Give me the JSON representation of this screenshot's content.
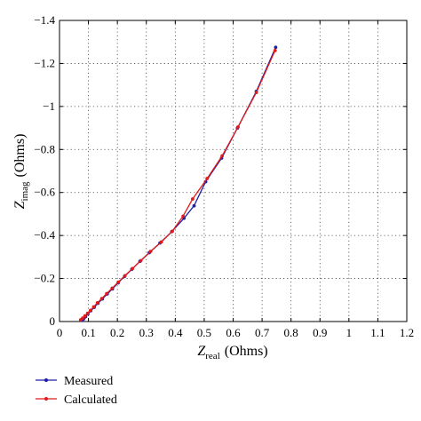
{
  "chart_data": {
    "type": "line",
    "xlabel": {
      "main": "Z",
      "sub": "real",
      "unit": "(Ohms)"
    },
    "ylabel": {
      "main": "Z",
      "sub": "imag",
      "unit": "(Ohms)"
    },
    "xlim": [
      0,
      1.2
    ],
    "ylim": [
      0,
      -1.4
    ],
    "x_ticks": [
      0,
      0.1,
      0.2,
      0.3,
      0.4,
      0.5,
      0.6,
      0.7,
      0.8,
      0.9,
      1,
      1.1,
      1.2
    ],
    "x_tick_labels": [
      "0",
      "0.1",
      "0.2",
      "0.3",
      "0.4",
      "0.5",
      "0.6",
      "0.7",
      "0.8",
      "0.9",
      "1",
      "1.1",
      "1.2"
    ],
    "y_ticks": [
      0,
      -0.2,
      -0.4,
      -0.6,
      -0.8,
      -1,
      -1.2,
      -1.4
    ],
    "y_tick_labels": [
      "0",
      "−0.2",
      "−0.4",
      "−0.6",
      "−0.8",
      "−1",
      "−1.2",
      "−1.4"
    ],
    "grid": true,
    "grid_style": "dotted",
    "legend_position": "bottom-left-outside",
    "series": [
      {
        "name": "Measured",
        "color": "#1f1fa6",
        "points": [
          [
            0.078,
            -0.005
          ],
          [
            0.083,
            -0.012
          ],
          [
            0.09,
            -0.022
          ],
          [
            0.098,
            -0.035
          ],
          [
            0.108,
            -0.05
          ],
          [
            0.12,
            -0.066
          ],
          [
            0.133,
            -0.085
          ],
          [
            0.148,
            -0.105
          ],
          [
            0.165,
            -0.128
          ],
          [
            0.183,
            -0.152
          ],
          [
            0.203,
            -0.18
          ],
          [
            0.225,
            -0.21
          ],
          [
            0.25,
            -0.243
          ],
          [
            0.278,
            -0.28
          ],
          [
            0.31,
            -0.32
          ],
          [
            0.347,
            -0.365
          ],
          [
            0.388,
            -0.418
          ],
          [
            0.43,
            -0.48
          ],
          [
            0.465,
            -0.538
          ],
          [
            0.505,
            -0.65
          ],
          [
            0.56,
            -0.76
          ],
          [
            0.615,
            -0.9
          ],
          [
            0.68,
            -1.07
          ],
          [
            0.747,
            -1.275
          ]
        ]
      },
      {
        "name": "Calculated",
        "color": "#e01b1b",
        "points": [
          [
            0.073,
            -0.008
          ],
          [
            0.08,
            -0.016
          ],
          [
            0.088,
            -0.026
          ],
          [
            0.097,
            -0.038
          ],
          [
            0.107,
            -0.052
          ],
          [
            0.118,
            -0.068
          ],
          [
            0.131,
            -0.087
          ],
          [
            0.146,
            -0.107
          ],
          [
            0.163,
            -0.13
          ],
          [
            0.182,
            -0.155
          ],
          [
            0.203,
            -0.183
          ],
          [
            0.226,
            -0.213
          ],
          [
            0.252,
            -0.246
          ],
          [
            0.281,
            -0.283
          ],
          [
            0.315,
            -0.326
          ],
          [
            0.352,
            -0.37
          ],
          [
            0.39,
            -0.42
          ],
          [
            0.427,
            -0.49
          ],
          [
            0.46,
            -0.57
          ],
          [
            0.51,
            -0.665
          ],
          [
            0.562,
            -0.77
          ],
          [
            0.617,
            -0.905
          ],
          [
            0.68,
            -1.065
          ],
          [
            0.745,
            -1.26
          ]
        ]
      }
    ]
  }
}
